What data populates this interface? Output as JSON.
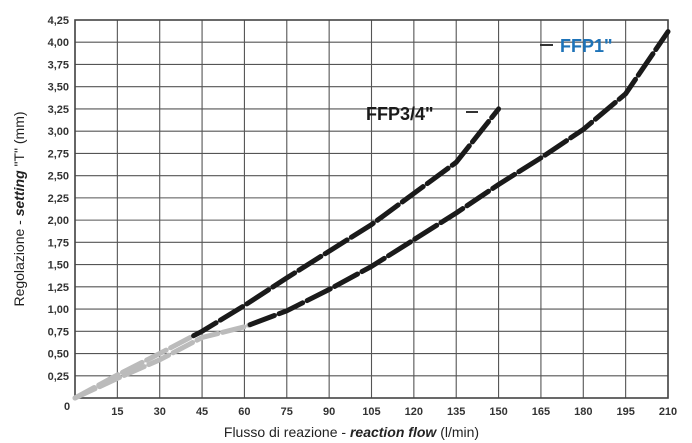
{
  "chart_data": {
    "type": "line",
    "title": "",
    "xlabel_prefix": "Flusso di reazione - ",
    "xlabel_emph": "reaction flow",
    "xlabel_suffix": " (l/min)",
    "ylabel_prefix": "Regolazione - ",
    "ylabel_emph": "setting",
    "ylabel_suffix": " \"T\" (mm)",
    "xlim": [
      0,
      210
    ],
    "ylim": [
      0,
      4.25
    ],
    "x_ticks": [
      0,
      15,
      30,
      45,
      60,
      75,
      90,
      105,
      120,
      135,
      150,
      165,
      180,
      195,
      210
    ],
    "x_tick_labels": [
      "0",
      "15",
      "30",
      "45",
      "60",
      "75",
      "90",
      "105",
      "120",
      "135",
      "150",
      "165",
      "180",
      "195",
      "210"
    ],
    "y_ticks": [
      0.25,
      0.5,
      0.75,
      1.0,
      1.25,
      1.5,
      1.75,
      2.0,
      2.25,
      2.5,
      2.75,
      3.0,
      3.25,
      3.5,
      3.75,
      4.0,
      4.25
    ],
    "y_tick_labels": [
      "0,25",
      "0,50",
      "0,75",
      "1,00",
      "1,25",
      "1,50",
      "1,75",
      "2,00",
      "2,25",
      "2,50",
      "2,75",
      "3,00",
      "3,25",
      "3,50",
      "3,75",
      "4,00",
      "4,25"
    ],
    "origin_label": "0",
    "grid": true,
    "series": [
      {
        "name": "FFP3/4\"",
        "color": "#1a1a1a",
        "light_color": "#bbbbbb",
        "label_color": "#1a1a1a",
        "light_until_x": 42,
        "x": [
          0,
          15,
          30,
          45,
          60,
          75,
          90,
          105,
          120,
          135,
          150
        ],
        "y": [
          0.0,
          0.26,
          0.5,
          0.75,
          1.04,
          1.35,
          1.65,
          1.95,
          2.3,
          2.65,
          3.25
        ]
      },
      {
        "name": "FFP1\"",
        "color": "#1a1a1a",
        "light_color": "#bbbbbb",
        "label_color": "#1e73b8",
        "light_until_x": 62,
        "x": [
          0,
          15,
          30,
          45,
          60,
          75,
          90,
          105,
          120,
          135,
          150,
          165,
          180,
          195,
          210
        ],
        "y": [
          0.0,
          0.22,
          0.43,
          0.68,
          0.8,
          0.98,
          1.22,
          1.48,
          1.78,
          2.08,
          2.4,
          2.7,
          3.02,
          3.42,
          4.12
        ]
      }
    ]
  }
}
